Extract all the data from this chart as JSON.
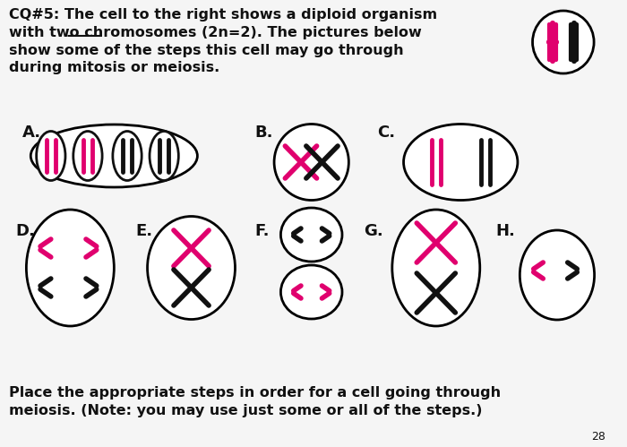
{
  "bg_color": "#f5f5f5",
  "title_text": "CQ#5: The cell to the right shows a diploid organism\nwith two chromosomes (2n=2). The pictures below\nshow some of the steps this cell may go through\nduring mitosis or meiosis.",
  "bottom_text": "Place the appropriate steps in order for a cell going through\nmeiosis. (Note: you may use just some or all of the steps.)",
  "pink": "#e0006e",
  "black": "#111111",
  "page_num": "28"
}
